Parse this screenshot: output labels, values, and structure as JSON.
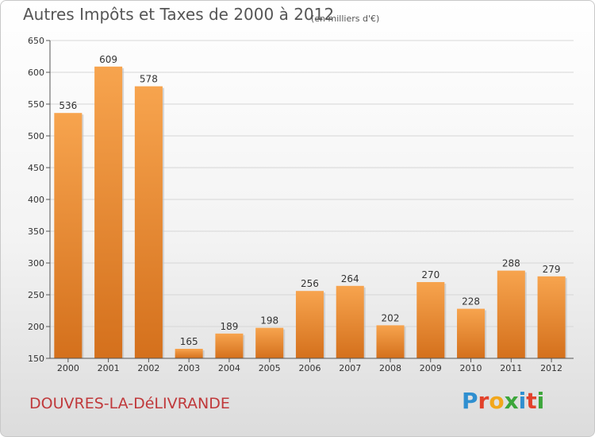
{
  "chart_data": {
    "type": "bar",
    "title": "Autres Impôts et Taxes de 2000 à 2012",
    "subtitle": "(en milliers d'€)",
    "categories": [
      "2000",
      "2001",
      "2002",
      "2003",
      "2004",
      "2005",
      "2006",
      "2007",
      "2008",
      "2009",
      "2010",
      "2011",
      "2012"
    ],
    "values": [
      536,
      609,
      578,
      165,
      189,
      198,
      256,
      264,
      202,
      270,
      228,
      288,
      279
    ],
    "ylim": [
      150,
      650
    ],
    "yticks": [
      150,
      200,
      250,
      300,
      350,
      400,
      450,
      500,
      550,
      600,
      650
    ],
    "grid": true,
    "bar_color_top": "#f7a44e",
    "bar_color_bottom": "#d4701c"
  },
  "footer": {
    "commune": "DOUVRES-LA-DéLIVRANDE",
    "brand": "Proxiti",
    "brand_colors": [
      "#2f8fd0",
      "#e2422b",
      "#f2a71b",
      "#3ca63a",
      "#2f8fd0",
      "#e2422b",
      "#3ca63a"
    ]
  }
}
